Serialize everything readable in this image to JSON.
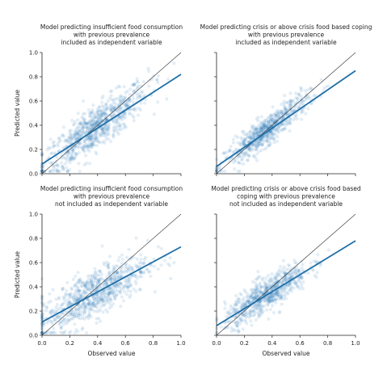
{
  "chart_data": [
    {
      "type": "scatter",
      "title_lines": [
        "Model predicting insufficient food consumption",
        "with previous prevalence",
        "included as independent variable"
      ],
      "xlabel": "",
      "ylabel": "Predicted value",
      "xlim": [
        0,
        1
      ],
      "ylim": [
        0,
        1
      ],
      "x_ticks": [],
      "y_ticks": [
        "0.0",
        "0.2",
        "0.4",
        "0.6",
        "0.8",
        "1.0"
      ],
      "reference_line": {
        "x": [
          0,
          1
        ],
        "y": [
          0,
          1
        ]
      },
      "fit_line": {
        "x": [
          0,
          1
        ],
        "y": [
          0.08,
          0.82
        ]
      },
      "point_cloud": {
        "count": 820,
        "x_mean": 0.38,
        "x_sd": 0.19,
        "intercept": 0.06,
        "slope": 0.82,
        "noise_sd": 0.09
      },
      "grid": false
    },
    {
      "type": "scatter",
      "title_lines": [
        "Model predicting crisis or above crisis food based coping",
        "with previous prevalence",
        "included as independent variable"
      ],
      "xlabel": "",
      "ylabel": "",
      "xlim": [
        0,
        1
      ],
      "ylim": [
        0,
        1
      ],
      "x_ticks": [],
      "y_ticks": [],
      "reference_line": {
        "x": [
          0,
          1
        ],
        "y": [
          0,
          1
        ]
      },
      "fit_line": {
        "x": [
          0,
          1
        ],
        "y": [
          0.06,
          0.85
        ]
      },
      "point_cloud": {
        "count": 700,
        "x_mean": 0.36,
        "x_sd": 0.15,
        "intercept": 0.04,
        "slope": 0.88,
        "noise_sd": 0.06
      },
      "grid": false
    },
    {
      "type": "scatter",
      "title_lines": [
        "Model predicting insufficient food consumption",
        "with previous prevalence",
        "not included as independent variable"
      ],
      "xlabel": "Observed value",
      "ylabel": "Predicted value",
      "xlim": [
        0,
        1
      ],
      "ylim": [
        0,
        1
      ],
      "x_ticks": [
        "0.0",
        "0.2",
        "0.4",
        "0.6",
        "0.8",
        "1.0"
      ],
      "y_ticks": [
        "0.0",
        "0.2",
        "0.4",
        "0.6",
        "0.8",
        "1.0"
      ],
      "reference_line": {
        "x": [
          0,
          1
        ],
        "y": [
          0,
          1
        ]
      },
      "fit_line": {
        "x": [
          0,
          1
        ],
        "y": [
          0.11,
          0.73
        ]
      },
      "point_cloud": {
        "count": 820,
        "x_mean": 0.36,
        "x_sd": 0.2,
        "intercept": 0.11,
        "slope": 0.62,
        "noise_sd": 0.1
      },
      "grid": false
    },
    {
      "type": "scatter",
      "title_lines": [
        "Model predicting crisis or above crisis food based",
        "coping with previous prevalence",
        "not included as independent variable"
      ],
      "xlabel": "Observed value",
      "ylabel": "",
      "xlim": [
        0,
        1
      ],
      "ylim": [
        0,
        1
      ],
      "x_ticks": [
        "0.0",
        "0.2",
        "0.4",
        "0.6",
        "0.8",
        "1.0"
      ],
      "y_ticks": [],
      "reference_line": {
        "x": [
          0,
          1
        ],
        "y": [
          0,
          1
        ]
      },
      "fit_line": {
        "x": [
          0,
          1
        ],
        "y": [
          0.08,
          0.78
        ]
      },
      "point_cloud": {
        "count": 700,
        "x_mean": 0.36,
        "x_sd": 0.15,
        "intercept": 0.08,
        "slope": 0.72,
        "noise_sd": 0.07
      },
      "grid": false
    }
  ],
  "colors": {
    "points": "#1f77b4",
    "fit_line": "#1f6fa8",
    "reference_line": "#333333",
    "axes": "#222222",
    "text": "#222222"
  }
}
